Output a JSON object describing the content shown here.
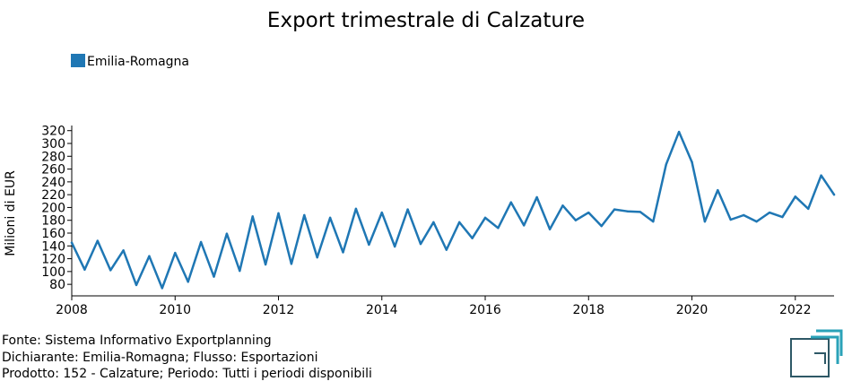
{
  "chart_data": {
    "type": "line",
    "title": "Export trimestrale di Calzature",
    "ylabel": "Milioni di EUR",
    "xlabel": "",
    "legend_position": "top-left",
    "grid": false,
    "ylim": [
      62,
      328
    ],
    "xlim": [
      2008.0,
      2022.75
    ],
    "y_ticks": [
      80,
      100,
      120,
      140,
      160,
      180,
      200,
      220,
      240,
      260,
      280,
      300,
      320
    ],
    "x_ticks": [
      2008,
      2010,
      2012,
      2014,
      2016,
      2018,
      2020,
      2022
    ],
    "series": [
      {
        "name": "Emilia-Romagna",
        "color": "#1f77b4",
        "x": [
          2008.0,
          2008.25,
          2008.5,
          2008.75,
          2009.0,
          2009.25,
          2009.5,
          2009.75,
          2010.0,
          2010.25,
          2010.5,
          2010.75,
          2011.0,
          2011.25,
          2011.5,
          2011.75,
          2012.0,
          2012.25,
          2012.5,
          2012.75,
          2013.0,
          2013.25,
          2013.5,
          2013.75,
          2014.0,
          2014.25,
          2014.5,
          2014.75,
          2015.0,
          2015.25,
          2015.5,
          2015.75,
          2016.0,
          2016.25,
          2016.5,
          2016.75,
          2017.0,
          2017.25,
          2017.5,
          2017.75,
          2018.0,
          2018.25,
          2018.5,
          2018.75,
          2019.0,
          2019.25,
          2019.5,
          2019.75,
          2020.0,
          2020.25,
          2020.5,
          2020.75,
          2021.0,
          2021.25,
          2021.5,
          2021.75,
          2022.0,
          2022.25,
          2022.5,
          2022.75
        ],
        "values": [
          145,
          103,
          148,
          102,
          133,
          79,
          124,
          74,
          129,
          84,
          146,
          92,
          159,
          101,
          186,
          111,
          191,
          112,
          188,
          122,
          184,
          130,
          198,
          142,
          192,
          139,
          197,
          143,
          177,
          134,
          177,
          152,
          184,
          168,
          208,
          172,
          216,
          166,
          203,
          180,
          192,
          171,
          197,
          194,
          193,
          178,
          267,
          318,
          271,
          178,
          227,
          181,
          188,
          178,
          192,
          185,
          217,
          198,
          250,
          220
        ]
      }
    ]
  },
  "footer": {
    "line1": "Fonte: Sistema Informativo Exportplanning",
    "line2": "Dichiarante: Emilia-Romagna; Flusso: Esportazioni",
    "line3": "Prodotto: 152 - Calzature; Periodo: Tutti i periodi disponibili"
  }
}
